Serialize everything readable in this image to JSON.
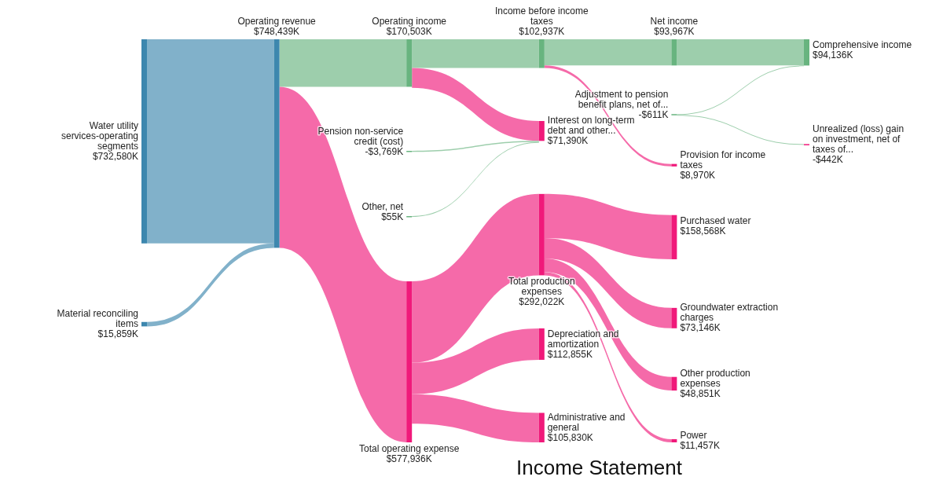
{
  "chart_data": {
    "type": "other",
    "title": "Income Statement",
    "categories": [
      "Water utility services-operating segments",
      "Material reconciling items",
      "Operating revenue",
      "Operating income",
      "Pension non-service credit (cost)",
      "Other, net",
      "Total operating expense",
      "Income before income taxes",
      "Interest on long-term debt and other...",
      "Total production expenses",
      "Depreciation and amortization",
      "Administrative and general",
      "Net income",
      "Adjustment to pension benefit plans, net of...",
      "Provision for income taxes",
      "Purchased water",
      "Groundwater extraction charges",
      "Other production expenses",
      "Power",
      "Comprehensive income",
      "Unrealized (loss) gain on investment, net of taxes of..."
    ],
    "values": [
      732580,
      15859,
      748439,
      170503,
      -3769,
      55,
      577936,
      102937,
      71390,
      292022,
      112855,
      105830,
      93967,
      -611,
      8970,
      158568,
      73146,
      48851,
      11457,
      94136,
      -442
    ],
    "value_labels": [
      "$732,580K",
      "$15,859K",
      "$748,439K",
      "$170,503K",
      "-$3,769K",
      "$55K",
      "$577,936K",
      "$102,937K",
      "$71,390K",
      "$292,022K",
      "$112,855K",
      "$105,830K",
      "$93,967K",
      "-$611K",
      "$8,970K",
      "$158,568K",
      "$73,146K",
      "$48,851K",
      "$11,457K",
      "$94,136K",
      "-$442K"
    ],
    "colors": [
      "#3d87ae",
      "#3d87ae",
      "#3d87ae",
      "#68b47f",
      "#68b47f",
      "#68b47f",
      "#f0197a",
      "#68b47f",
      "#f0197a",
      "#f0197a",
      "#f0197a",
      "#f0197a",
      "#68b47f",
      "#68b47f",
      "#f0197a",
      "#f0197a",
      "#f0197a",
      "#f0197a",
      "#f0197a",
      "#68b47f",
      "#f0197a"
    ]
  }
}
